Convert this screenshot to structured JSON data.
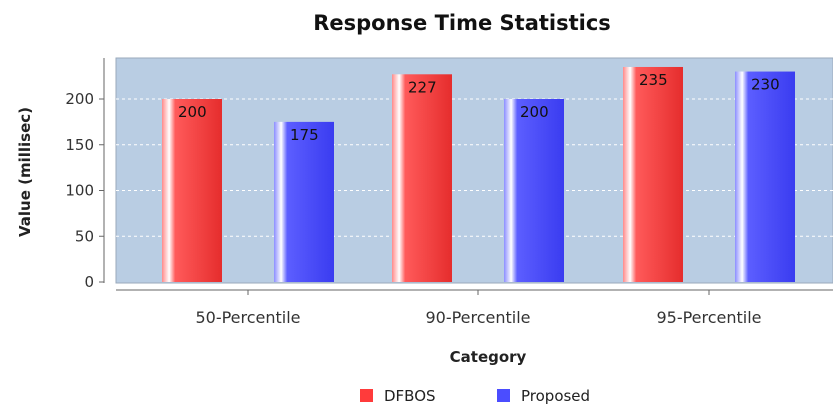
{
  "chart_data": {
    "type": "bar",
    "title": "Response Time Statistics",
    "xlabel": "Category",
    "ylabel": "Value (millisec)",
    "categories": [
      "50-Percentile",
      "90-Percentile",
      "95-Percentile"
    ],
    "series": [
      {
        "name": "DFBOS",
        "values": [
          200,
          227,
          235
        ],
        "labels": [
          "200",
          "227",
          "235"
        ]
      },
      {
        "name": "Proposed",
        "values": [
          175,
          200,
          230
        ],
        "labels": [
          "175",
          "200",
          "230"
        ]
      }
    ],
    "ylim": [
      0,
      240
    ],
    "yticks": [
      0,
      50,
      100,
      150,
      200
    ],
    "grid": true,
    "legend_position": "bottom",
    "colors": {
      "DFBOS": "#ff3b3b",
      "Proposed": "#4b4dff",
      "plot_background": "#b9cde3",
      "grid": "#ffffff"
    }
  }
}
